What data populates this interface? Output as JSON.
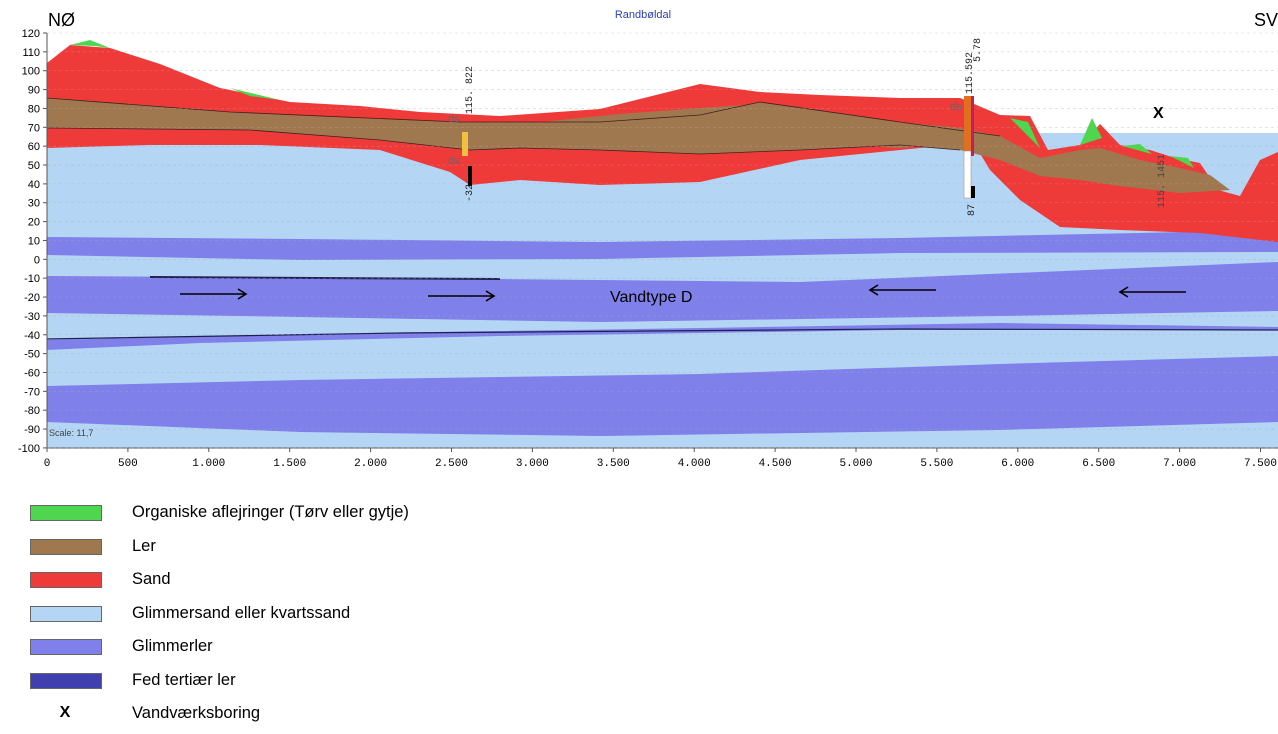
{
  "header": {
    "title": "Randbøldal",
    "left_label": "NØ",
    "right_label": "SV"
  },
  "axes": {
    "y_ticks": [
      "120",
      "110",
      "100",
      "90",
      "80",
      "70",
      "60",
      "50",
      "40",
      "30",
      "20",
      "10",
      "0",
      "-10",
      "-20",
      "-30",
      "-40",
      "-50",
      "-60",
      "-70",
      "-80",
      "-90",
      "-100"
    ],
    "x_ticks": [
      "0",
      "500",
      "1.000",
      "1.500",
      "2.000",
      "2.500",
      "3.000",
      "3.500",
      "4.000",
      "4.500",
      "5.000",
      "5.500",
      "6.000",
      "6.500",
      "7.000",
      "7.500"
    ],
    "scale_text": "Scale: 11,7"
  },
  "annotations": {
    "water_type": "Vandtype D",
    "well_marker": "X",
    "borehole_1": {
      "label": "115. 822",
      "bottom": "-32",
      "ds": "ds"
    },
    "borehole_2": {
      "label": "115.592",
      "label2": "5.78",
      "bottom": "87",
      "ds": "ds"
    },
    "borehole_3": {
      "label": "115. 1451"
    }
  },
  "colors": {
    "organic": "#4ed64e",
    "clay": "#a07850",
    "sand": "#ef3a3a",
    "mica_sand": "#b4d6f4",
    "mica_clay": "#8080ea",
    "fat_clay": "#3f3fb0"
  },
  "legend": [
    {
      "label": "Organiske aflejringer (Tørv eller gytje)",
      "color": "#4ed64e"
    },
    {
      "label": "Ler",
      "color": "#a07850"
    },
    {
      "label": "Sand",
      "color": "#ef3a3a"
    },
    {
      "label": "Glimmersand eller kvartssand",
      "color": "#b4d6f4"
    },
    {
      "label": "Glimmerler",
      "color": "#8080ea"
    },
    {
      "label": "Fed tertiær ler",
      "color": "#3f3fb0"
    },
    {
      "label": "Vandværksboring",
      "symbol": "X"
    }
  ]
}
